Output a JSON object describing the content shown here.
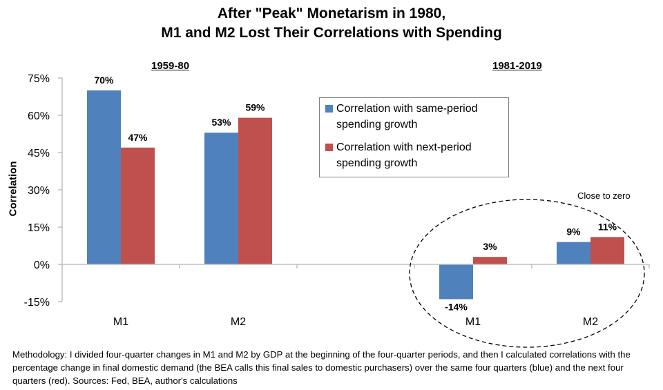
{
  "chart_data": {
    "type": "bar",
    "title_line1": "After \"Peak\" Monetarism in 1980,",
    "title_line2": "M1 and M2 Lost Their Correlations with Spending",
    "xlabel": "",
    "ylabel": "Correlation",
    "ylim": [
      -15,
      75
    ],
    "yticks": [
      -15,
      0,
      15,
      30,
      45,
      60,
      75
    ],
    "ytick_labels": [
      "-15%",
      "0%",
      "15%",
      "30%",
      "45%",
      "60%",
      "75%"
    ],
    "grid": false,
    "legend_position": "center-top",
    "categories": [
      "M1",
      "M2",
      "",
      "M1",
      "M2"
    ],
    "periods": [
      {
        "label": "1959-80",
        "category_indices": [
          0,
          1
        ]
      },
      {
        "label": "1981-2019",
        "category_indices": [
          3,
          4
        ]
      }
    ],
    "series": [
      {
        "name": "Correlation with same-period spending growth",
        "color": "#4f81bd",
        "values": [
          70,
          53,
          null,
          -14,
          9
        ],
        "labels": [
          "70%",
          "53%",
          "",
          "-14%",
          "9%"
        ]
      },
      {
        "name": "Correlation with next-period spending growth",
        "color": "#c0504d",
        "values": [
          47,
          59,
          null,
          3,
          11
        ],
        "labels": [
          "47%",
          "59%",
          "",
          "3%",
          "11%"
        ]
      }
    ],
    "annotation": "Close to zero"
  },
  "legend": {
    "items": [
      {
        "label": "Correlation with same-period spending growth",
        "color": "#4f81bd"
      },
      {
        "label": "Correlation with next-period spending growth",
        "color": "#c0504d"
      }
    ]
  },
  "footnote": "Methodology: I divided four-quarter changes in M1 and M2 by GDP at the beginning of the four-quarter periods, and then I calculated correlations with the percentage change in final domestic demand (the BEA calls this final sales to domestic purchasers) over the same four quarters (blue) and the next four quarters (red).  Sources: Fed, BEA, author's calculations"
}
